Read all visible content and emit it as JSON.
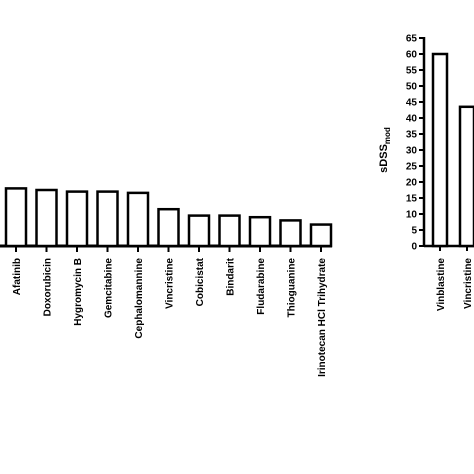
{
  "chart_data": [
    {
      "type": "bar",
      "categories": [
        "Afatinib",
        "Doxorubicin",
        "Hygromycin B",
        "Gemcitabine",
        "Cephalomannine",
        "Vincristine",
        "Cobicistat",
        "Bindarit",
        "Fludarabine",
        "Thioguanine",
        "Irinotecan HCl Trihydrate"
      ],
      "values": [
        18,
        17.5,
        17,
        17,
        16.6,
        11.5,
        9.5,
        9.5,
        9,
        8,
        6.7
      ],
      "xlabel": "",
      "ylabel": "",
      "ylim": [
        0,
        65
      ],
      "grid": false
    },
    {
      "type": "bar",
      "categories": [
        "Vinblastine",
        "Vincristine"
      ],
      "values": [
        60,
        43.5
      ],
      "ylabel_main": "sDSS",
      "ylabel_sub": "mod",
      "ylim": [
        0,
        65
      ],
      "ticks": [
        "0",
        "5",
        "10",
        "15",
        "20",
        "25",
        "30",
        "35",
        "40",
        "45",
        "50",
        "55",
        "60",
        "65"
      ],
      "grid": false
    }
  ]
}
